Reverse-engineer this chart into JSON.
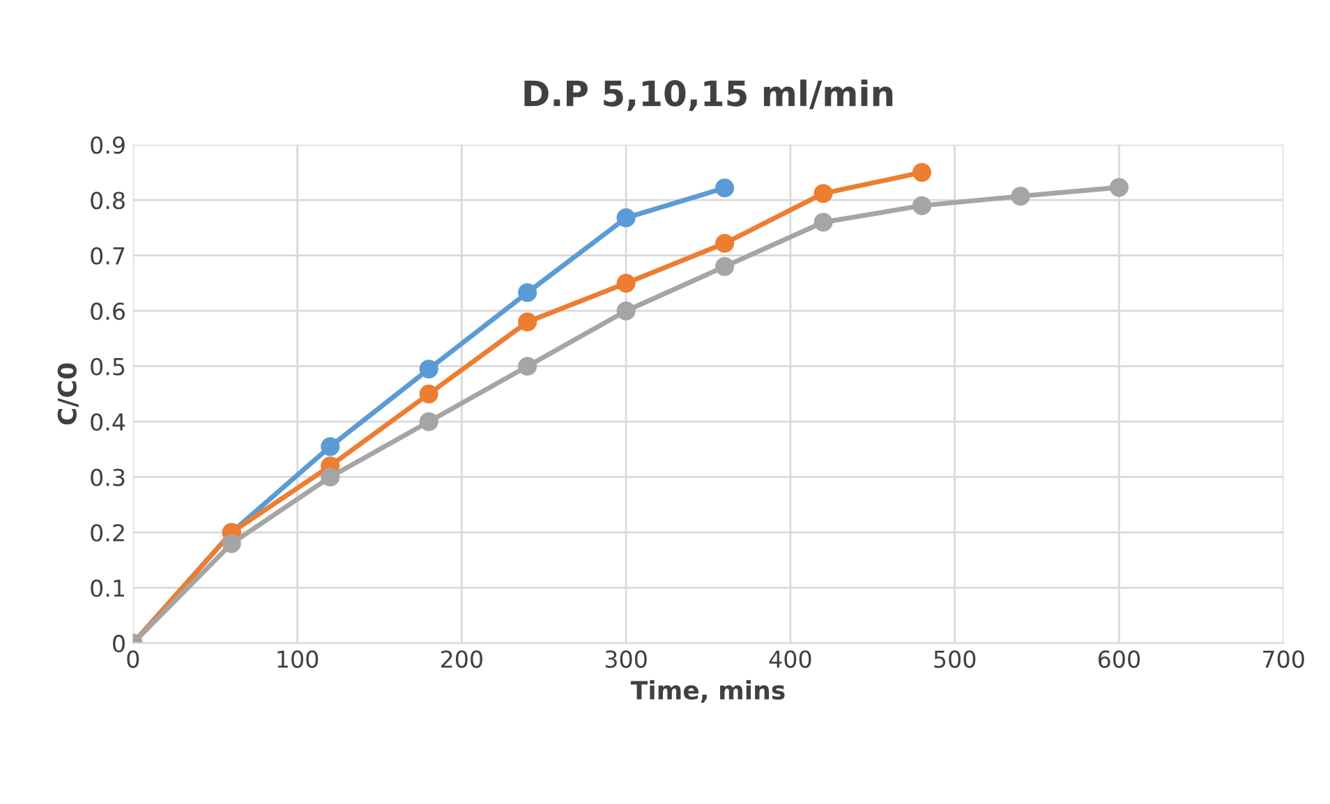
{
  "chart_data": {
    "type": "line",
    "title": "D.P 5,10,15 ml/min",
    "xlabel": "Time, mins",
    "ylabel": "C/C0",
    "xlim": [
      0,
      700
    ],
    "xticks": [
      0,
      100,
      200,
      300,
      400,
      500,
      600,
      700
    ],
    "ylim": [
      0,
      0.9
    ],
    "yticks": [
      0,
      0.1,
      0.2,
      0.3,
      0.4,
      0.5,
      0.6,
      0.7,
      0.8,
      0.9
    ],
    "grid": true,
    "marker": "circle",
    "line_style": "solid",
    "series": [
      {
        "color": "#5b9bd5",
        "x": [
          0,
          60,
          120,
          180,
          240,
          300,
          360
        ],
        "values": [
          0,
          0.2,
          0.355,
          0.495,
          0.633,
          0.768,
          0.822
        ]
      },
      {
        "color": "#ed7d31",
        "x": [
          0,
          60,
          120,
          180,
          240,
          300,
          360,
          420,
          480
        ],
        "values": [
          0,
          0.2,
          0.32,
          0.45,
          0.58,
          0.65,
          0.722,
          0.812,
          0.85
        ]
      },
      {
        "color": "#a5a5a5",
        "x": [
          0,
          60,
          120,
          180,
          240,
          300,
          360,
          420,
          480,
          540,
          600
        ],
        "values": [
          0,
          0.18,
          0.3,
          0.4,
          0.5,
          0.6,
          0.68,
          0.76,
          0.79,
          0.807,
          0.823
        ]
      }
    ]
  }
}
